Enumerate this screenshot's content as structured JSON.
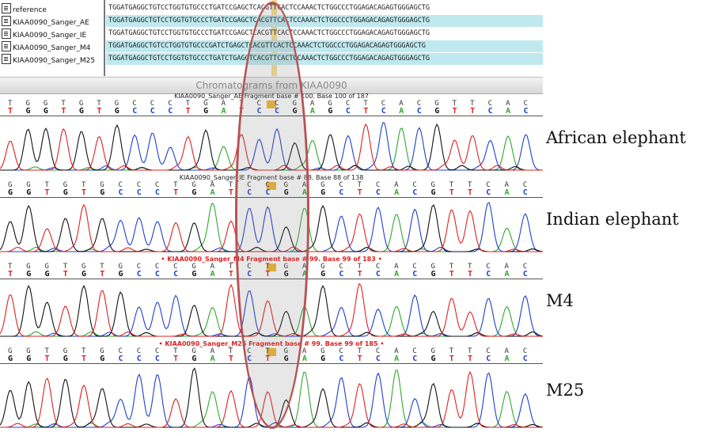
{
  "alignment": {
    "rows": [
      {
        "name": "reference",
        "seq": "TGGATGAGGCTGTCCTGGTGTGCCCTGATCCGAGCTCACGTTCACTCCAAACTCTGGCCCTGGAGACAGAGTGGGAGCTG",
        "highlight": false
      },
      {
        "name": "KIAA0090_Sanger_AE",
        "seq": "TGGATGAGGCTGTCCTGGTGTGCCCTGATCCGAGCTCACGTTCACTCCAAACTCTGGCCCTGGAGACAGAGTGGGAGCTG",
        "highlight": true
      },
      {
        "name": "KIAA0090_Sanger_IE",
        "seq": "TGGATGAGGCTGTCCTGGTGTGCCCTGATCCGAGCTCACGTTCACTCCAAACTCTGGCCCTGGAGACAGAGTGGGAGCTG",
        "highlight": false
      },
      {
        "name": "KIAA0090_Sanger_M4",
        "seq": "TGGATGAGGCTGTCCTGGTGTGCCCGATCTGAGCTCACGTTCACTCCAAACTCTGGCCCTGGAGACAGAGTGGGAGCTG",
        "highlight": true
      },
      {
        "name": "KIAA0090_Sanger_M25",
        "seq": "TGGATGAGGCTGTCCTGGTGTGCCCTGATCTGAGCTCACGTTCACTCCAAACTCTGGCCCTGGAGACAGAGTGGGAGCTG",
        "highlight": true
      }
    ]
  },
  "chromatogram_title": "Chromatograms from KIAA0090",
  "tracks": [
    {
      "label": "KIAA0090_Sanger_AE Fragment base # 100. Base 100 of 187",
      "species": "African  elephant",
      "ref_bases": [
        "T",
        "G",
        "G",
        "T",
        "G",
        "T",
        "G",
        "C",
        "C",
        "C",
        "T",
        "G",
        "A",
        "T",
        "C",
        "C",
        "G",
        "A",
        "G",
        "C",
        "T",
        "C",
        "A",
        "C",
        "G",
        "T",
        "T",
        "C",
        "A",
        "C"
      ],
      "calls": [
        "T",
        "G",
        "G",
        "T",
        "G",
        "T",
        "G",
        "C",
        "C",
        "C",
        "T",
        "G",
        "A",
        "T",
        "C",
        "C",
        "G",
        "A",
        "G",
        "C",
        "T",
        "C",
        "A",
        "C",
        "G",
        "T",
        "T",
        "C",
        "A",
        "C"
      ]
    },
    {
      "label": "KIAA0090_Sanger_IE Fragment base # 88. Base 88 of 138",
      "species": "Indian  elephant",
      "ref_bases": [
        "G",
        "G",
        "T",
        "G",
        "T",
        "G",
        "C",
        "C",
        "C",
        "T",
        "G",
        "A",
        "T",
        "C",
        "C",
        "G",
        "A",
        "G",
        "C",
        "T",
        "C",
        "A",
        "C",
        "G",
        "T",
        "T",
        "C",
        "A",
        "C"
      ],
      "calls": [
        "G",
        "G",
        "T",
        "G",
        "T",
        "G",
        "C",
        "C",
        "C",
        "T",
        "G",
        "A",
        "T",
        "C",
        "C",
        "G",
        "A",
        "G",
        "C",
        "T",
        "C",
        "A",
        "C",
        "G",
        "T",
        "T",
        "C",
        "A",
        "C"
      ]
    },
    {
      "label": "• KIAA0090_Sanger_M4 Fragment base # 99. Base 99 of 183 •",
      "species": "M4",
      "ref_bases": [
        "T",
        "G",
        "G",
        "T",
        "G",
        "T",
        "G",
        "C",
        "C",
        "C",
        "G",
        "A",
        "T",
        "C",
        "T",
        "G",
        "A",
        "G",
        "C",
        "T",
        "C",
        "A",
        "C",
        "G",
        "T",
        "T",
        "C",
        "A",
        "C"
      ],
      "calls": [
        "T",
        "G",
        "G",
        "T",
        "G",
        "T",
        "G",
        "C",
        "C",
        "C",
        "G",
        "A",
        "T",
        "C",
        "T",
        "G",
        "A",
        "G",
        "C",
        "T",
        "C",
        "A",
        "C",
        "G",
        "T",
        "T",
        "C",
        "A",
        "C"
      ]
    },
    {
      "label": "• KIAA0090_Sanger_M25 Fragment base # 99. Base 99 of 185 •",
      "species": "M25",
      "ref_bases": [
        "G",
        "G",
        "T",
        "G",
        "T",
        "G",
        "C",
        "C",
        "C",
        "T",
        "G",
        "A",
        "T",
        "C",
        "T",
        "G",
        "A",
        "G",
        "C",
        "T",
        "C",
        "A",
        "C",
        "G",
        "T",
        "T",
        "C",
        "A",
        "C"
      ],
      "calls": [
        "G",
        "G",
        "T",
        "G",
        "T",
        "G",
        "C",
        "C",
        "C",
        "T",
        "G",
        "A",
        "T",
        "C",
        "T",
        "G",
        "A",
        "G",
        "C",
        "T",
        "C",
        "A",
        "C",
        "G",
        "T",
        "T",
        "C",
        "A",
        "C"
      ]
    }
  ],
  "colors": {
    "A": "#2fa82f",
    "C": "#1f3fd0",
    "G": "#111111",
    "T": "#e02020",
    "highlight": "#f3b833",
    "oval": "#b65454"
  }
}
